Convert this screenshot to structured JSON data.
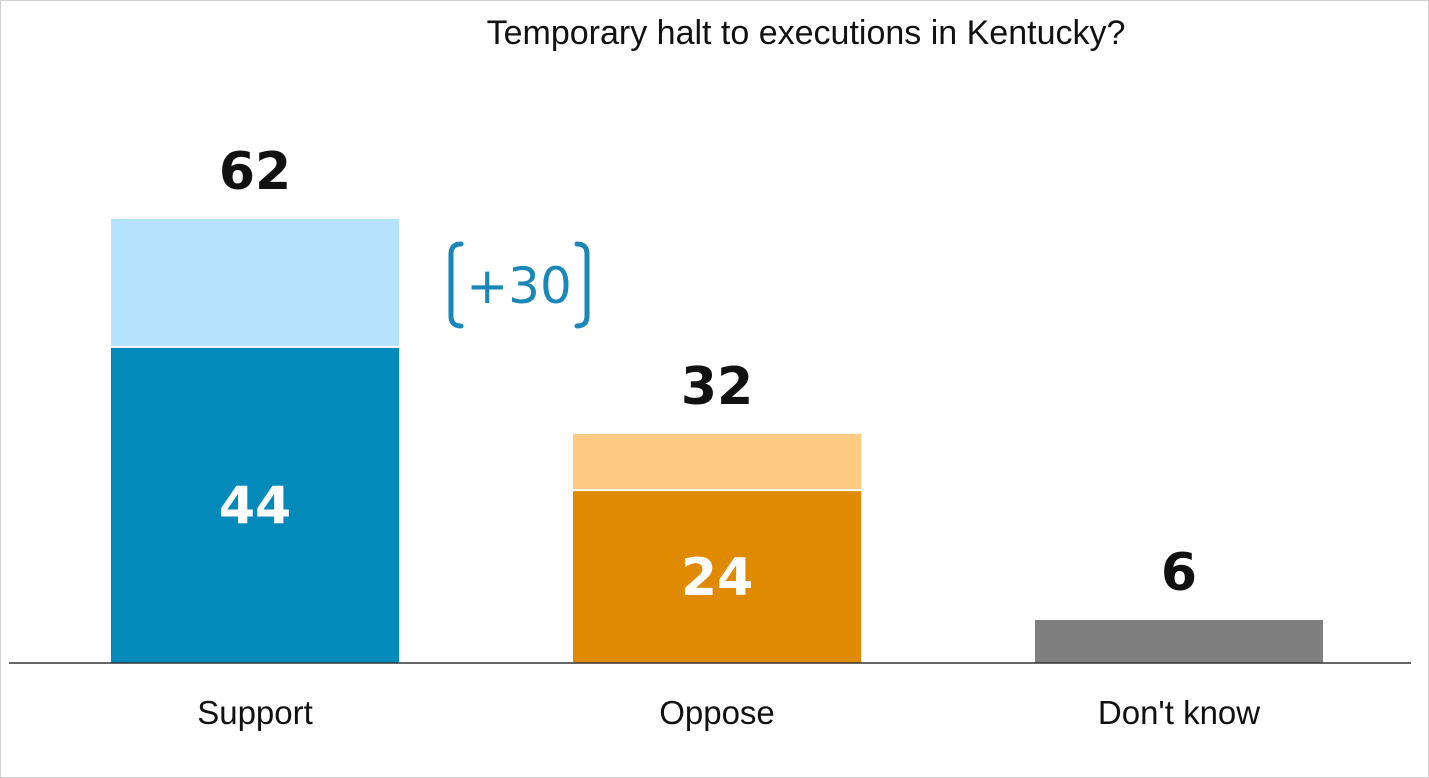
{
  "chart_data": {
    "type": "bar",
    "title": "Temporary halt to executions in Kentucky?",
    "categories": [
      "Support",
      "Oppose",
      "Don't know"
    ],
    "totals": [
      62,
      32,
      6
    ],
    "series": [
      {
        "values": [
          44,
          24,
          6
        ]
      },
      {
        "values": [
          18,
          8,
          0
        ]
      }
    ],
    "inner_labels": [
      "44",
      "24",
      ""
    ],
    "total_labels": [
      "62",
      "32",
      "6"
    ],
    "difference_annotation": "+30",
    "ylim": [
      0,
      62
    ],
    "grid": false,
    "colors": {
      "Support": {
        "strong": "#0389BA",
        "light": "#B5E2FC"
      },
      "Oppose": {
        "strong": "#DF8A00",
        "light": "#FDCB83"
      },
      "Don't know": {
        "strong": "#7F7F7F",
        "light": "#BFBFBF"
      },
      "annotation": "#1A87B8",
      "axis": "#333333"
    }
  }
}
